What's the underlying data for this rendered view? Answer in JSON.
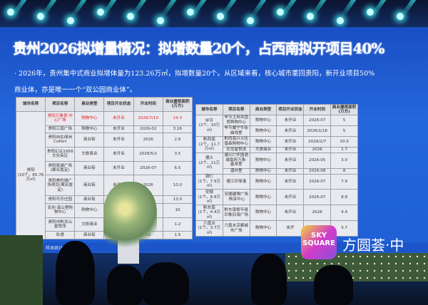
{
  "slide": {
    "title": "贵州2026拟增量情况：拟增数量20个，占西南拟开项目40%",
    "line1": "· 2026年，贵州集中式商业拟增体量为123.26万㎡，拟增数量20个。从区域来看，核心城市重回贵阳，新开业项目50%",
    "line2": "商业体，亦是唯一一个“双公园商业体”。",
    "footer": "大数据，样本统计……"
  },
  "table_left": {
    "headers": [
      "城市名称",
      "项目名称",
      "商业类型",
      "项目开业状态",
      "开业时间",
      "商业建筑面积(万方)"
    ],
    "city": "贵阳\n(10个，65.76万㎡)",
    "rows": [
      [
        "贵阳万象荟·中心广场",
        "购物中心",
        "未开业",
        "2026/7/10",
        "14.3"
      ],
      [
        "贵阳江南广场",
        "购物中心",
        "未开业",
        "2026-02",
        "3.16"
      ],
      [
        "贵阳自在绿洲CoPort",
        "商业街",
        "未开业",
        "2026",
        "2.6"
      ],
      [
        "贵阳幻云1958文化街区",
        "文旅商业",
        "未开业",
        "2026/5/1",
        "3.5"
      ],
      [
        "贵阳筑城广场(案名暂定)",
        "商业街",
        "未开业",
        "2026-07",
        "6.5"
      ],
      [
        "贵阳美的城广场项目(案名暂定)",
        "商业街",
        "未开业",
        "2026",
        "10.0"
      ],
      [
        "贵阳可乐庄园",
        "商业街",
        "",
        "",
        "13.0"
      ],
      [
        "宏创·溪山里购物中心",
        "购物中心",
        "",
        "",
        "10"
      ],
      [
        "贵阳市黔灵山星悦茂",
        "文旅商业",
        "",
        "7/1",
        "1.2"
      ],
      [
        "玖遇",
        "商业街",
        "",
        "02",
        "1.5"
      ]
    ]
  },
  "table_right": {
    "headers": [
      "城市名称",
      "项目名称",
      "商业类型",
      "项目开业状态",
      "开业时间",
      "商业建筑面积(万方)"
    ],
    "groups": [
      {
        "city": "毕节\n(2个，10万㎡)",
        "rows": [
          [
            "毕节王府井国贸购物中心",
            "购物中心",
            "未开业",
            "2026-07",
            "5"
          ],
          [
            "毕节威宁牛街曲线里",
            "购物中心",
            "未开业",
            "2026/1/16",
            "5"
          ]
        ]
      },
      {
        "city": "黔西南\n(2个，11.7万㎡)",
        "rows": [
          [
            "黔西南兴义拉普森购物中心",
            "购物中心",
            "未开业",
            "2026/2/7",
            "10.0"
          ],
          [
            "安龙星悦茂",
            "文旅商业",
            "未开业",
            "2026",
            "1.7"
          ]
        ]
      },
      {
        "city": "遵义\n(2个，11万㎡)",
        "rows": [
          [
            "遵义仁怀国酒城南府万象·鑫帝里",
            "购物中心",
            "未开业",
            "2026-05",
            "3.0"
          ],
          [
            "湄州里",
            "购物中心",
            "未开业",
            "2026-08",
            "8"
          ]
        ]
      },
      {
        "city": "铜仁\n(1个，7.9万㎡)",
        "rows": [
          [
            "德江环球港",
            "购物中心",
            "未开业",
            "2026-07",
            "7.9"
          ]
        ]
      },
      {
        "city": "安顺\n(1个，8.8万㎡)",
        "rows": [
          [
            "安顺建博广场·购享中心",
            "购物中心",
            "未开业",
            "2026-07",
            "8.8"
          ]
        ]
      },
      {
        "city": "黔东南\n(1个，4.4万㎡)",
        "rows": [
          [
            "黔东南黎平县印象旧海广场",
            "购物中心",
            "未开业",
            "2026",
            "4.4"
          ]
        ]
      },
      {
        "city": "六盘水\n(1个，3.7万㎡)",
        "rows": [
          [
            "六盘水凉都城市广场",
            "购物中心",
            "未开",
            "",
            "3.7"
          ]
        ]
      }
    ]
  },
  "logo": {
    "text": "SKY SQUARE",
    "brand": "方圆荟·中"
  },
  "colors": {
    "screen": "#2466dc",
    "highlight_row": "#e0202a",
    "table_bg": "#e9eaef"
  }
}
